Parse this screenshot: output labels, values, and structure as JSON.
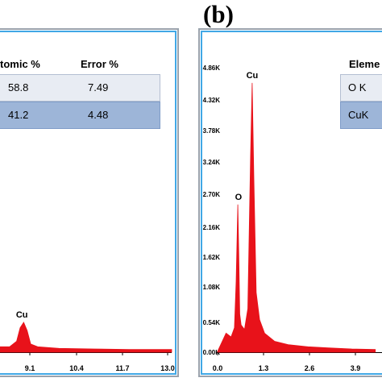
{
  "panel_b_label": "(b)",
  "left_panel": {
    "table": {
      "headers": [
        "tomic %",
        "Error %"
      ],
      "rows": [
        {
          "atomic": "58.8",
          "error": "7.49"
        },
        {
          "atomic": "41.2",
          "error": "4.48"
        }
      ]
    },
    "peak_label": "Cu"
  },
  "right_panel": {
    "table": {
      "header": "Eleme",
      "rows": [
        "O K",
        "CuK"
      ]
    },
    "peak_labels": [
      "O",
      "Cu"
    ]
  },
  "colors": {
    "spectrum": "#e8121a",
    "frame_blue": "#41a8e6",
    "frame_gray": "#9aa3ad",
    "row_light": "#e8ecf3",
    "row_dark": "#9db5d8"
  },
  "chart_data": [
    {
      "type": "area",
      "title": "",
      "xlabel": "",
      "ylabel": "",
      "x_ticks": [
        "9.1",
        "10.4",
        "11.7",
        "13.0"
      ],
      "xlim": [
        8.1,
        13.2
      ],
      "ylim": [
        0,
        5.3
      ],
      "series": [
        {
          "x": [
            8.1,
            8.6,
            8.8,
            8.9,
            9.0,
            9.1,
            9.2,
            9.4,
            10.0,
            11.0,
            12.0,
            13.0,
            13.2
          ],
          "y": [
            0.1,
            0.1,
            0.2,
            0.45,
            0.55,
            0.4,
            0.15,
            0.1,
            0.07,
            0.06,
            0.05,
            0.05,
            0.05
          ]
        }
      ],
      "annotations": [
        {
          "text": "Cu",
          "x": 8.95,
          "y": 0.55
        }
      ]
    },
    {
      "type": "area",
      "title": "",
      "xlabel": "",
      "ylabel": "",
      "x_ticks": [
        "0.0",
        "1.3",
        "2.6",
        "3.9"
      ],
      "y_ticks": [
        "0.00K",
        "0.54K",
        "1.08K",
        "1.62K",
        "2.16K",
        "2.70K",
        "3.24K",
        "3.78K",
        "4.32K",
        "4.86K"
      ],
      "xlim": [
        -0.15,
        4.8
      ],
      "ylim": [
        0,
        5.3
      ],
      "series": [
        {
          "x": [
            -0.1,
            0.0,
            0.15,
            0.3,
            0.4,
            0.45,
            0.5,
            0.53,
            0.56,
            0.6,
            0.7,
            0.8,
            0.88,
            0.93,
            0.98,
            1.05,
            1.15,
            1.3,
            1.6,
            2.0,
            2.6,
            3.2,
            3.9,
            4.6
          ],
          "y": [
            0.02,
            0.15,
            0.35,
            0.28,
            0.45,
            1.3,
            2.72,
            1.8,
            0.7,
            0.5,
            0.42,
            0.8,
            3.6,
            4.96,
            3.2,
            1.1,
            0.6,
            0.35,
            0.2,
            0.14,
            0.1,
            0.08,
            0.06,
            0.05
          ]
        }
      ],
      "annotations": [
        {
          "text": "O",
          "x": 0.52,
          "y": 2.72
        },
        {
          "text": "Cu",
          "x": 0.93,
          "y": 4.96
        }
      ]
    }
  ]
}
